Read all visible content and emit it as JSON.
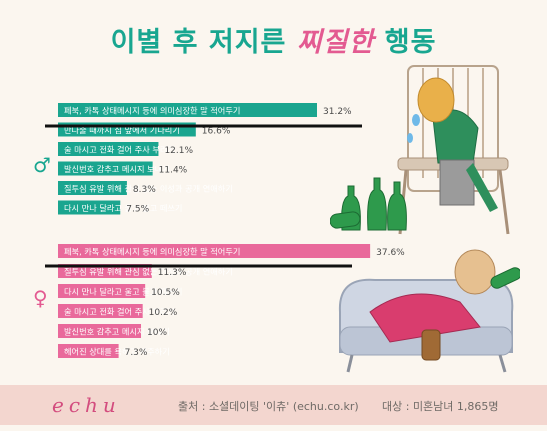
{
  "title": {
    "part1": "이별 후 저지른 ",
    "part2": "찌질한",
    "part3": " 행동"
  },
  "gender_labels": {
    "male": "♂",
    "female": "♀"
  },
  "chart_data": [
    {
      "type": "bar",
      "orientation": "horizontal",
      "group": "male",
      "categories": [
        "페북, 카톡 상태메시지 등에 의미심장한 말 적어두기",
        "만나줄 때까지 집 앞에서 기다리기",
        "술 마시고 전화 걸어 주사 부리기",
        "발신번호 감추고 메시지 보내기",
        "질투심 유발 위해 관심 없는 이성과 공개 연애하기",
        "다시 만나 달라고 울고 불고 떼쓰기"
      ],
      "values": [
        31.2,
        16.6,
        12.1,
        11.4,
        8.3,
        7.5
      ],
      "labels": [
        "31.2%",
        "16.6%",
        "12.1%",
        "11.4%",
        "8.3%",
        "7.5%"
      ],
      "color": "#1aa58f"
    },
    {
      "type": "bar",
      "orientation": "horizontal",
      "group": "female",
      "categories": [
        "페북, 카톡 상태메시지 등에 의미심장한 말 적어두기",
        "질투심 유발 위해 관심 없는 이성과 공개 연애하기",
        "다시 만나 달라고 울고 불고 떼쓰기",
        "술 마시고 전화 걸어 주사 부리기",
        "발신번호 감추고 메시지 보내기",
        "헤어진 상대를 욕하고 저주하기"
      ],
      "values": [
        37.6,
        11.3,
        10.5,
        10.2,
        10,
        7.3
      ],
      "labels": [
        "37.6%",
        "11.3%",
        "10.5%",
        "10.2%",
        "10%",
        "7.3%"
      ],
      "color": "#e9699b"
    }
  ],
  "footer": {
    "logo": "echu",
    "source": "출처 : 소셜데이팅 '이츄' (echu.co.kr)",
    "target": "대상 : 미혼남녀 1,865명"
  }
}
